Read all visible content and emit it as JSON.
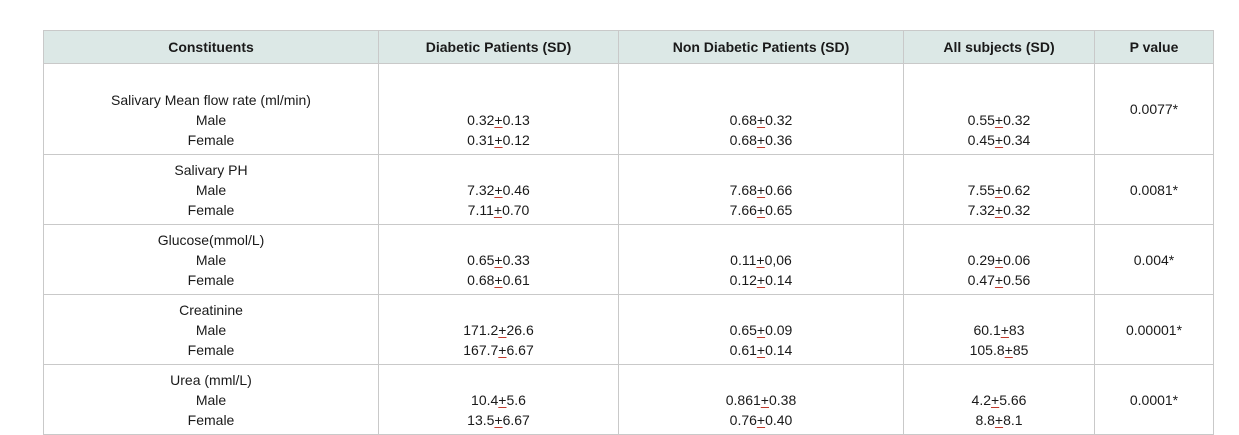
{
  "headers": [
    "Constituents",
    "Diabetic Patients (SD)",
    "Non Diabetic Patients (SD)",
    "All subjects (SD)",
    "P value"
  ],
  "rows": [
    {
      "label": "Salivary Mean flow rate (ml/min)",
      "male_label": "Male",
      "female_label": "Female",
      "diabetic": [
        {
          "a": "0.32",
          "pm": "+",
          "b": "0.13"
        },
        {
          "a": "0.31",
          "pm": "+",
          "b": "0.12"
        }
      ],
      "non_diabetic": [
        {
          "a": "0.68",
          "pm": "+",
          "b": "0.32"
        },
        {
          "a": "0.68",
          "pm": "+",
          "b": "0.36"
        }
      ],
      "all": [
        {
          "a": "0.55",
          "pm": "+",
          "b": "0.32"
        },
        {
          "a": "0.45",
          "pm": "+",
          "b": "0.34"
        }
      ],
      "p": "0.0077*"
    },
    {
      "label": "Salivary PH",
      "male_label": "Male",
      "female_label": "Female",
      "diabetic": [
        {
          "a": "7.32",
          "pm": "+",
          "b": "0.46"
        },
        {
          "a": "7.11",
          "pm": "+",
          "b": "0.70"
        }
      ],
      "non_diabetic": [
        {
          "a": "7.68",
          "pm": "+",
          "b": "0.66"
        },
        {
          "a": "7.66",
          "pm": "+",
          "b": "0.65"
        }
      ],
      "all": [
        {
          "a": "7.55",
          "pm": "+",
          "b": "0.62"
        },
        {
          "a": "7.32",
          "pm": "+",
          "b": "0.32"
        }
      ],
      "p": "0.0081*"
    },
    {
      "label": "Glucose(mmol/L)",
      "male_label": "Male",
      "female_label": "Female",
      "diabetic": [
        {
          "a": "0.65",
          "pm": "+",
          "b": "0.33"
        },
        {
          "a": "0.68",
          "pm": "+",
          "b": "0.61"
        }
      ],
      "non_diabetic": [
        {
          "a": "0.11",
          "pm": "+",
          "b": "0,06"
        },
        {
          "a": "0.12",
          "pm": "+",
          "b": "0.14"
        }
      ],
      "all": [
        {
          "a": "0.29",
          "pm": "+",
          "b": "0.06"
        },
        {
          "a": "0.47",
          "pm": "+",
          "b": "0.56"
        }
      ],
      "p": "0.004*"
    },
    {
      "label": "Creatinine",
      "male_label": "Male",
      "female_label": "Female",
      "diabetic": [
        {
          "a": "171.2",
          "pm": "+",
          "b": "26.6"
        },
        {
          "a": "167.7",
          "pm": "+",
          "b": "6.67"
        }
      ],
      "non_diabetic": [
        {
          "a": "0.65",
          "pm": "+",
          "b": "0.09"
        },
        {
          "a": "0.61",
          "pm": "+",
          "b": "0.14"
        }
      ],
      "all": [
        {
          "a": "60.1",
          "pm": "+",
          "b": "83"
        },
        {
          "a": "105.8",
          "pm": "+",
          "b": "85"
        }
      ],
      "p": "0.00001*"
    },
    {
      "label": "Urea (mml/L)",
      "male_label": "Male",
      "female_label": "Female",
      "diabetic": [
        {
          "a": "10.4",
          "pm": "+",
          "b": "5.6"
        },
        {
          "a": "13.5",
          "pm": "+",
          "b": "6.67"
        }
      ],
      "non_diabetic": [
        {
          "a": "0.861",
          "pm": "+",
          "b": "0.38"
        },
        {
          "a": "0.76",
          "pm": "+",
          "b": "0.40"
        }
      ],
      "all": [
        {
          "a": "4.2",
          "pm": "+",
          "b": "5.66"
        },
        {
          "a": "8.8",
          "pm": "+",
          "b": "8.1"
        }
      ],
      "p": "0.0001*"
    }
  ]
}
